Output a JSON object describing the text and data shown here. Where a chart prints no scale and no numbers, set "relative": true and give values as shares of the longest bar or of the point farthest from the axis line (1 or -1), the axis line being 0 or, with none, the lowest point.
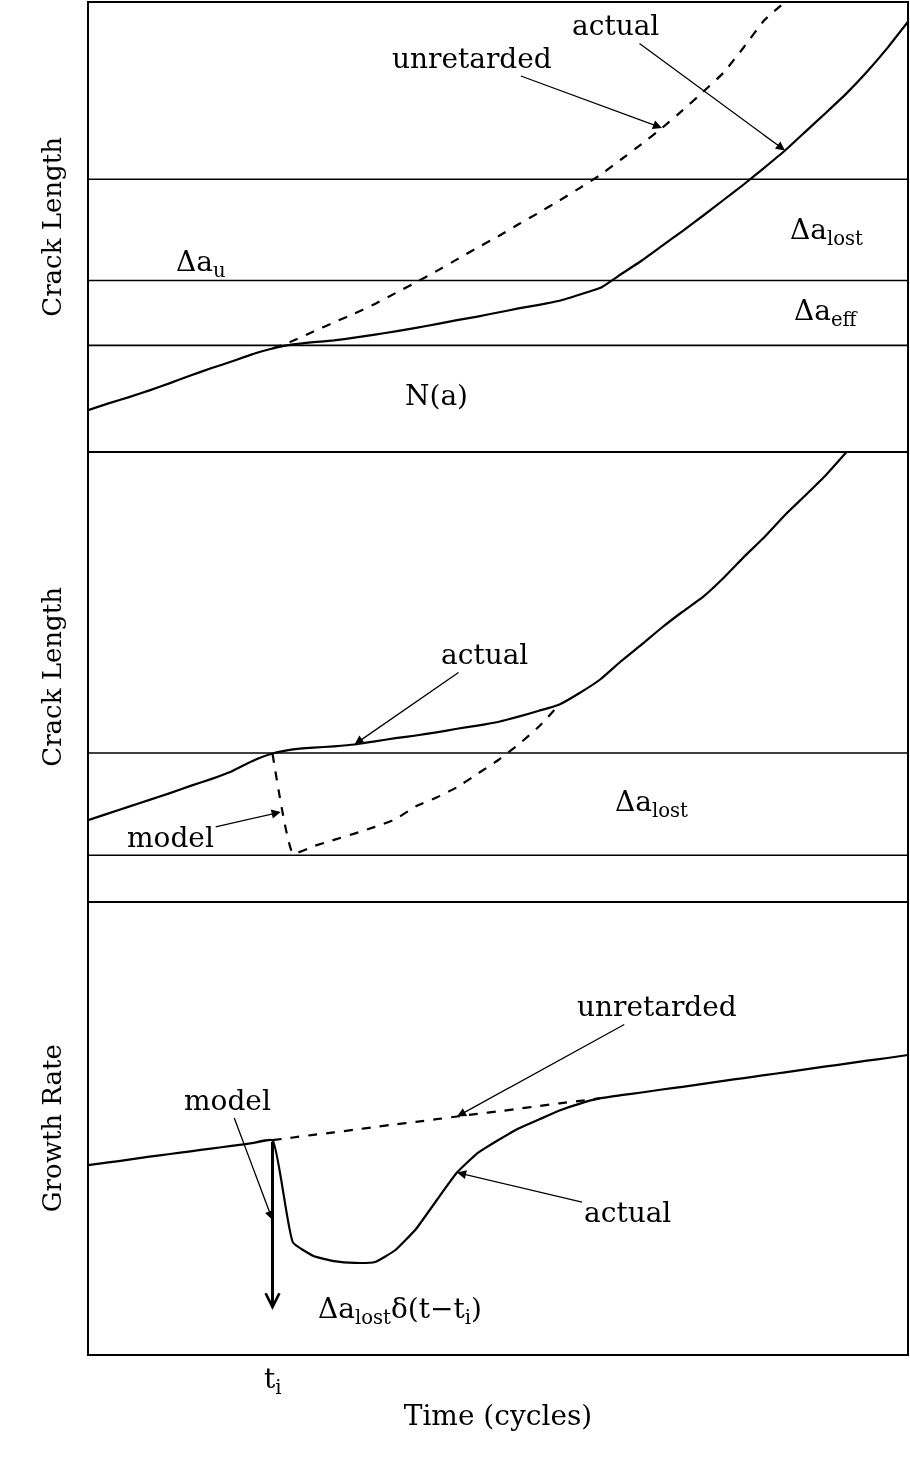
{
  "chart_data": [
    {
      "type": "line",
      "relative": true,
      "ylabel": "Crack Length",
      "categories": [
        null,
        null,
        null,
        null,
        null,
        null,
        null,
        null,
        null,
        null,
        null,
        null,
        null,
        null,
        null,
        null,
        null,
        null,
        null,
        null,
        null,
        null,
        null,
        null,
        null,
        null,
        null,
        null,
        null,
        null,
        null,
        null,
        null,
        null,
        null,
        null,
        null,
        null,
        null,
        null,
        null
      ],
      "series": [
        {
          "color": "#000000",
          "line_style": "solid",
          "values": [
            0.093,
            0.108,
            0.122,
            0.137,
            0.153,
            0.17,
            0.186,
            0.201,
            0.217,
            0.23,
            0.239,
            0.244,
            0.248,
            0.254,
            0.261,
            0.268,
            0.276,
            0.284,
            0.293,
            0.301,
            0.31,
            0.319,
            0.327,
            0.336,
            0.35,
            0.365,
            0.395,
            0.425,
            0.458,
            0.491,
            0.525,
            0.56,
            0.595,
            0.632,
            0.67,
            0.712,
            0.754,
            0.797,
            0.845,
            0.898,
            0.956
          ]
        },
        {
          "color": "#000000",
          "line_style": "dashed",
          "values": [
            null,
            null,
            null,
            null,
            null,
            null,
            null,
            null,
            null,
            0.23,
            0.247,
            0.268,
            0.288,
            0.308,
            0.329,
            0.353,
            0.377,
            0.402,
            0.428,
            0.454,
            0.479,
            0.506,
            0.532,
            0.559,
            0.587,
            0.616,
            0.65,
            0.684,
            0.72,
            0.759,
            0.8,
            0.843,
            0.9,
            0.96,
            1.0,
            null,
            null,
            null,
            null,
            null,
            null
          ]
        }
      ],
      "ref_lines": [
        {
          "axis": "y",
          "value": 0.606
        },
        {
          "axis": "y",
          "value": 0.381
        },
        {
          "axis": "y",
          "value": 0.237
        }
      ],
      "annotations": [
        "actual",
        "unretarded",
        "Δa$_{u}$",
        "Δa$_{lost}$",
        "Δa$_{eff}$",
        "N(a)"
      ]
    },
    {
      "type": "line",
      "relative": true,
      "ylabel": "Crack Length",
      "categories": [
        null,
        null,
        null,
        null,
        null,
        null,
        null,
        null,
        null,
        null,
        null,
        null,
        null,
        null,
        null,
        null,
        null,
        null,
        null,
        null,
        null,
        null,
        null,
        null,
        null,
        null,
        null,
        null,
        null,
        null,
        null,
        null,
        null,
        null,
        null,
        null,
        null,
        null,
        null,
        null,
        null
      ],
      "series": [
        {
          "color": "#000000",
          "line_style": "solid",
          "values": [
            0.182,
            0.197,
            0.212,
            0.227,
            0.242,
            0.258,
            0.273,
            0.29,
            0.313,
            0.33,
            0.339,
            0.343,
            0.346,
            0.35,
            0.357,
            0.364,
            0.37,
            0.377,
            0.385,
            0.392,
            0.4,
            0.412,
            0.425,
            0.439,
            0.465,
            0.495,
            0.535,
            0.572,
            0.61,
            0.645,
            0.678,
            0.72,
            0.767,
            0.811,
            0.86,
            0.904,
            0.949,
            1.0,
            null,
            null,
            null
          ]
        },
        {
          "color": "#000000",
          "line_style": "dashed",
          "values": [
            null,
            null,
            null,
            null,
            null,
            null,
            null,
            null,
            null,
            0.33,
            0.108,
            0.124,
            0.138,
            0.152,
            0.167,
            0.184,
            0.213,
            0.232,
            0.255,
            0.285,
            0.315,
            0.35,
            0.39,
            0.439,
            null,
            null,
            null,
            null,
            null,
            null,
            null,
            null,
            null,
            null,
            null,
            null,
            null,
            null,
            null,
            null,
            null
          ]
        }
      ],
      "ref_lines": [
        {
          "axis": "y",
          "value": 0.331
        },
        {
          "axis": "y",
          "value": 0.104
        }
      ],
      "annotations": [
        "actual",
        "model",
        "Δa$_{lost}$"
      ]
    },
    {
      "type": "line",
      "relative": true,
      "ylabel": "Growth Rate",
      "xlabel": "Time (cycles)",
      "categories": [
        null,
        null,
        null,
        null,
        null,
        null,
        null,
        null,
        null,
        null,
        null,
        null,
        null,
        null,
        null,
        null,
        null,
        null,
        null,
        null,
        null,
        null,
        null,
        null,
        null,
        null,
        null,
        null,
        null,
        null,
        null,
        null,
        null,
        null,
        null,
        null,
        null,
        null,
        null,
        null,
        null
      ],
      "series": [
        {
          "color": "#000000",
          "line_style": "solid",
          "values": [
            0.633,
            0.642,
            0.651,
            0.661,
            0.67,
            0.679,
            0.688,
            0.697,
            0.706,
            0.716,
            0.375,
            0.33,
            0.313,
            0.307,
            0.31,
            0.35,
            0.42,
            0.515,
            0.608,
            0.673,
            0.716,
            0.755,
            0.785,
            0.815,
            0.838,
            0.856,
            0.866,
            0.875,
            0.885,
            0.894,
            0.904,
            0.914,
            0.923,
            0.933,
            0.942,
            0.952,
            0.962,
            0.971,
            0.981,
            0.99,
            1.0
          ]
        },
        {
          "color": "#000000",
          "line_style": "dashed",
          "values": [
            null,
            null,
            null,
            null,
            null,
            null,
            null,
            null,
            null,
            0.716,
            0.725,
            0.734,
            0.742,
            0.751,
            0.76,
            0.769,
            0.777,
            0.786,
            0.795,
            0.804,
            0.812,
            0.821,
            0.83,
            0.839,
            0.847,
            0.856,
            null,
            null,
            null,
            null,
            null,
            null,
            null,
            null,
            null,
            null,
            null,
            null,
            null,
            null,
            null
          ]
        }
      ],
      "annotations": [
        "model",
        "unretarded",
        "actual",
        "Δa$_{lost}$δ(t−t$_{i}$)",
        "t$_{i}$"
      ]
    }
  ]
}
